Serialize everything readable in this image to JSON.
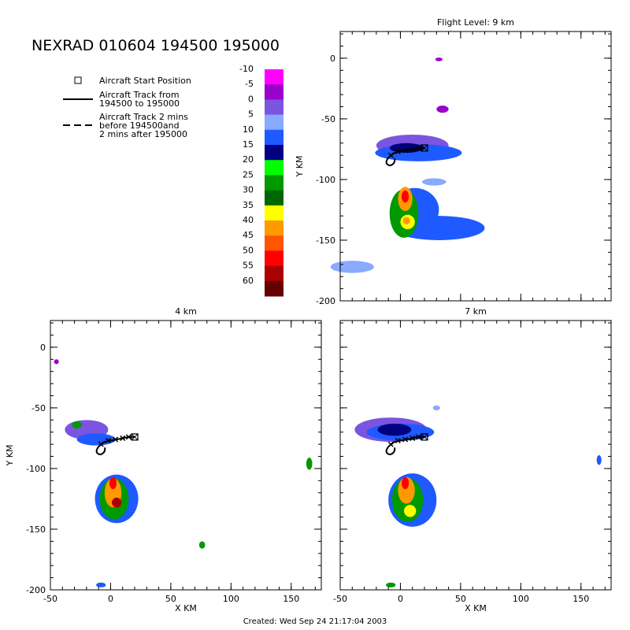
{
  "title": "NEXRAD 010604 194500 195000",
  "footer": "Created: Wed Sep 24 21:17:04 2003",
  "legend": {
    "start_label": "Aircraft Start Position",
    "track_label_1": "Aircraft Track from",
    "track_label_2": "194500 to 195000",
    "track2_label_1": "Aircraft Track 2 mins",
    "track2_label_2": "before 194500and",
    "track2_label_3": "2 mins after 195000"
  },
  "colorbar": {
    "levels": [
      "-10",
      "-5",
      "0",
      "5",
      "10",
      "15",
      "20",
      "25",
      "30",
      "35",
      "40",
      "45",
      "50",
      "55",
      "60"
    ],
    "colors": [
      "#ff00ff",
      "#9900cc",
      "#7b55e0",
      "#88aaff",
      "#1e5aff",
      "#000080",
      "#00ff00",
      "#009900",
      "#006600",
      "#ffff00",
      "#ff9900",
      "#ff5500",
      "#ff0000",
      "#aa0000",
      "#660000"
    ]
  },
  "chart_data": [
    {
      "type": "heatmap",
      "title": "Flight Level: 9 km",
      "xlabel": "",
      "ylabel": "Y KM",
      "xlim": [
        -50,
        175
      ],
      "ylim": [
        -200,
        22
      ],
      "xticks": [],
      "yticks": [
        "0",
        "-50",
        "-100",
        "-150",
        "-200"
      ],
      "blobs": [
        {
          "cx": 10,
          "cy": -72,
          "rx": 30,
          "ry": 9,
          "color": "#7b55e0"
        },
        {
          "cx": 15,
          "cy": -78,
          "rx": 36,
          "ry": 7,
          "color": "#1e5aff"
        },
        {
          "cx": 5,
          "cy": -74,
          "rx": 14,
          "ry": 4,
          "color": "#000080"
        },
        {
          "cx": 28,
          "cy": -102,
          "rx": 10,
          "ry": 3,
          "color": "#88aaff"
        },
        {
          "cx": 32,
          "cy": -140,
          "rx": 38,
          "ry": 10,
          "color": "#1e5aff"
        },
        {
          "cx": 12,
          "cy": -125,
          "rx": 20,
          "ry": 18,
          "color": "#1e5aff"
        },
        {
          "cx": 3,
          "cy": -128,
          "rx": 12,
          "ry": 20,
          "color": "#009900"
        },
        {
          "cx": 4,
          "cy": -116,
          "rx": 6,
          "ry": 10,
          "color": "#ff9900"
        },
        {
          "cx": 4,
          "cy": -114,
          "rx": 3,
          "ry": 5,
          "color": "#ff0000"
        },
        {
          "cx": 6,
          "cy": -135,
          "rx": 6,
          "ry": 6,
          "color": "#ffff00"
        },
        {
          "cx": 5,
          "cy": -134,
          "rx": 3,
          "ry": 3,
          "color": "#ff9900"
        },
        {
          "cx": -40,
          "cy": -172,
          "rx": 18,
          "ry": 5,
          "color": "#88aaff"
        },
        {
          "cx": 35,
          "cy": -42,
          "rx": 5,
          "ry": 3,
          "color": "#9900cc"
        },
        {
          "cx": 32,
          "cy": -1,
          "rx": 3,
          "ry": 1.5,
          "color": "#9900cc"
        }
      ],
      "track_x": [
        -10,
        -5,
        0,
        5,
        10,
        15,
        20
      ],
      "track_y": [
        -82,
        -78,
        -77,
        -76,
        -75,
        -74,
        -74
      ],
      "start": [
        20,
        -74
      ],
      "markers_x": [
        -8,
        -2,
        4,
        10,
        15
      ],
      "markers_y": [
        -80,
        -77,
        -76,
        -75,
        -74
      ]
    },
    {
      "type": "heatmap",
      "title": "4 km",
      "xlabel": "X KM",
      "ylabel": "Y KM",
      "xlim": [
        -50,
        175
      ],
      "ylim": [
        -200,
        22
      ],
      "xticks": [
        "-50",
        "0",
        "50",
        "100",
        "150"
      ],
      "yticks": [
        "0",
        "-50",
        "-100",
        "-150",
        "-200"
      ],
      "blobs": [
        {
          "cx": -20,
          "cy": -68,
          "rx": 18,
          "ry": 8,
          "color": "#7b55e0"
        },
        {
          "cx": -12,
          "cy": -76,
          "rx": 16,
          "ry": 5,
          "color": "#1e5aff"
        },
        {
          "cx": -28,
          "cy": -64,
          "rx": 4,
          "ry": 3,
          "color": "#009900"
        },
        {
          "cx": 5,
          "cy": -125,
          "rx": 18,
          "ry": 20,
          "color": "#1e5aff"
        },
        {
          "cx": 3,
          "cy": -125,
          "rx": 12,
          "ry": 17,
          "color": "#009900"
        },
        {
          "cx": 2,
          "cy": -120,
          "rx": 7,
          "ry": 12,
          "color": "#ff9900"
        },
        {
          "cx": 2,
          "cy": -112,
          "rx": 3,
          "ry": 5,
          "color": "#ff0000"
        },
        {
          "cx": 5,
          "cy": -128,
          "rx": 4,
          "ry": 4,
          "color": "#aa0000"
        },
        {
          "cx": 165,
          "cy": -96,
          "rx": 2.5,
          "ry": 5,
          "color": "#009900"
        },
        {
          "cx": 76,
          "cy": -163,
          "rx": 2.5,
          "ry": 3,
          "color": "#009900"
        },
        {
          "cx": -8,
          "cy": -196,
          "rx": 4,
          "ry": 2,
          "color": "#1e5aff"
        },
        {
          "cx": -45,
          "cy": -12,
          "rx": 2,
          "ry": 2,
          "color": "#9900cc"
        }
      ],
      "track_x": [
        -10,
        -5,
        0,
        5,
        10,
        15,
        20
      ],
      "track_y": [
        -82,
        -78,
        -77,
        -76,
        -75,
        -74,
        -74
      ],
      "start": [
        20,
        -74
      ],
      "markers_x": [
        -8,
        -2,
        4,
        10,
        15
      ],
      "markers_y": [
        -80,
        -77,
        -76,
        -75,
        -74
      ]
    },
    {
      "type": "heatmap",
      "title": "7 km",
      "xlabel": "X KM",
      "ylabel": "",
      "xlim": [
        -50,
        175
      ],
      "ylim": [
        -200,
        22
      ],
      "xticks": [
        "-50",
        "0",
        "50",
        "100",
        "150"
      ],
      "yticks": [],
      "blobs": [
        {
          "cx": -8,
          "cy": -68,
          "rx": 30,
          "ry": 10,
          "color": "#7b55e0"
        },
        {
          "cx": 0,
          "cy": -70,
          "rx": 28,
          "ry": 7,
          "color": "#1e5aff"
        },
        {
          "cx": -5,
          "cy": -68,
          "rx": 14,
          "ry": 5,
          "color": "#000080"
        },
        {
          "cx": 10,
          "cy": -126,
          "rx": 20,
          "ry": 22,
          "color": "#1e5aff"
        },
        {
          "cx": 6,
          "cy": -126,
          "rx": 13,
          "ry": 18,
          "color": "#009900"
        },
        {
          "cx": 5,
          "cy": -118,
          "rx": 7,
          "ry": 11,
          "color": "#ff9900"
        },
        {
          "cx": 4,
          "cy": -112,
          "rx": 3,
          "ry": 5,
          "color": "#ff0000"
        },
        {
          "cx": 8,
          "cy": -135,
          "rx": 5,
          "ry": 5,
          "color": "#ffff00"
        },
        {
          "cx": 165,
          "cy": -93,
          "rx": 2,
          "ry": 4,
          "color": "#1e5aff"
        },
        {
          "cx": -8,
          "cy": -196,
          "rx": 4,
          "ry": 2,
          "color": "#009900"
        },
        {
          "cx": 30,
          "cy": -50,
          "rx": 3,
          "ry": 2,
          "color": "#88aaff"
        }
      ],
      "track_x": [
        -10,
        -5,
        0,
        5,
        10,
        15,
        20
      ],
      "track_y": [
        -82,
        -78,
        -77,
        -76,
        -75,
        -74,
        -74
      ],
      "start": [
        20,
        -74
      ],
      "markers_x": [
        -8,
        -2,
        4,
        10,
        15
      ],
      "markers_y": [
        -80,
        -77,
        -76,
        -75,
        -74
      ]
    }
  ]
}
